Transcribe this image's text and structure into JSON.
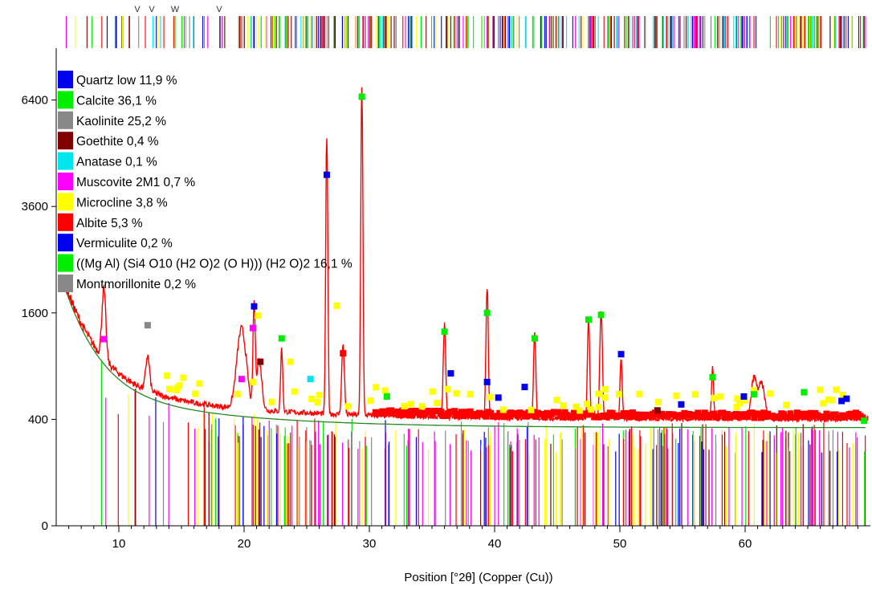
{
  "chart_data": {
    "type": "line",
    "xlabel": "Position [°2θ] (Copper (Cu))",
    "ylabel": "",
    "xlim": [
      5,
      70
    ],
    "ylim": [
      0,
      8000
    ],
    "y_scale": "sqrt",
    "x_ticks": [
      10,
      20,
      30,
      40,
      50,
      60
    ],
    "y_ticks": [
      0,
      400,
      1600,
      3600,
      6400
    ],
    "legend_position": "top-left",
    "grid": false,
    "phases": [
      {
        "name": "Quartz low 11,9 %",
        "color": "#0000ee"
      },
      {
        "name": "Calcite 36,1 %",
        "color": "#00ee00"
      },
      {
        "name": "Kaolinite 25,2 %",
        "color": "#888888"
      },
      {
        "name": "Goethite 0,4 %",
        "color": "#800000"
      },
      {
        "name": "Anatase 0,1 %",
        "color": "#00e5ee"
      },
      {
        "name": "Muscovite 2M1 0,7 %",
        "color": "#ff00ff"
      },
      {
        "name": "Microcline 3,8 %",
        "color": "#ffff00"
      },
      {
        "name": "Albite 5,3 %",
        "color": "#ff0000"
      },
      {
        "name": "Vermiculite 0,2 %",
        "color": "#0000ee"
      },
      {
        "name": "((Mg Al) (Si4 O10 (H2 O)2 (O H))) (H2 O)2 16,1 %",
        "color": "#00ee00"
      },
      {
        "name": "Montmorillonite 0,2 %",
        "color": "#888888"
      }
    ],
    "peaks": [
      {
        "x": 8.8,
        "y": 1230,
        "phase": 5
      },
      {
        "x": 12.3,
        "y": 1420,
        "phase": 2
      },
      {
        "x": 19.8,
        "y": 760,
        "phase": 5
      },
      {
        "x": 20.8,
        "y": 1700,
        "phase": 0
      },
      {
        "x": 20.7,
        "y": 1380,
        "phase": 5
      },
      {
        "x": 21.1,
        "y": 1560,
        "phase": 6
      },
      {
        "x": 21.3,
        "y": 950,
        "phase": 3
      },
      {
        "x": 23.0,
        "y": 1240,
        "phase": 1
      },
      {
        "x": 23.7,
        "y": 950,
        "phase": 6
      },
      {
        "x": 25.3,
        "y": 760,
        "phase": 4
      },
      {
        "x": 26.6,
        "y": 4350,
        "phase": 0
      },
      {
        "x": 27.4,
        "y": 1710,
        "phase": 6
      },
      {
        "x": 27.9,
        "y": 1050,
        "phase": 7
      },
      {
        "x": 29.4,
        "y": 6500,
        "phase": 1
      },
      {
        "x": 31.4,
        "y": 590,
        "phase": 1
      },
      {
        "x": 36.0,
        "y": 1330,
        "phase": 1
      },
      {
        "x": 36.5,
        "y": 820,
        "phase": 0
      },
      {
        "x": 39.4,
        "y": 1600,
        "phase": 1
      },
      {
        "x": 39.4,
        "y": 730,
        "phase": 0
      },
      {
        "x": 40.3,
        "y": 580,
        "phase": 0
      },
      {
        "x": 42.4,
        "y": 680,
        "phase": 0
      },
      {
        "x": 43.2,
        "y": 1240,
        "phase": 1
      },
      {
        "x": 47.5,
        "y": 1500,
        "phase": 1
      },
      {
        "x": 48.5,
        "y": 1570,
        "phase": 1
      },
      {
        "x": 50.1,
        "y": 1040,
        "phase": 0
      },
      {
        "x": 53.0,
        "y": 470,
        "phase": 3
      },
      {
        "x": 54.9,
        "y": 520,
        "phase": 0
      },
      {
        "x": 57.4,
        "y": 780,
        "phase": 1
      },
      {
        "x": 59.9,
        "y": 590,
        "phase": 0
      },
      {
        "x": 60.7,
        "y": 610,
        "phase": 1
      },
      {
        "x": 64.7,
        "y": 630,
        "phase": 1
      },
      {
        "x": 67.7,
        "y": 550,
        "phase": 0
      },
      {
        "x": 68.1,
        "y": 570,
        "phase": 0
      },
      {
        "x": 69.5,
        "y": 390,
        "phase": 1
      }
    ],
    "stick_markers_top": [
      "V",
      "V",
      "W",
      "V"
    ]
  }
}
